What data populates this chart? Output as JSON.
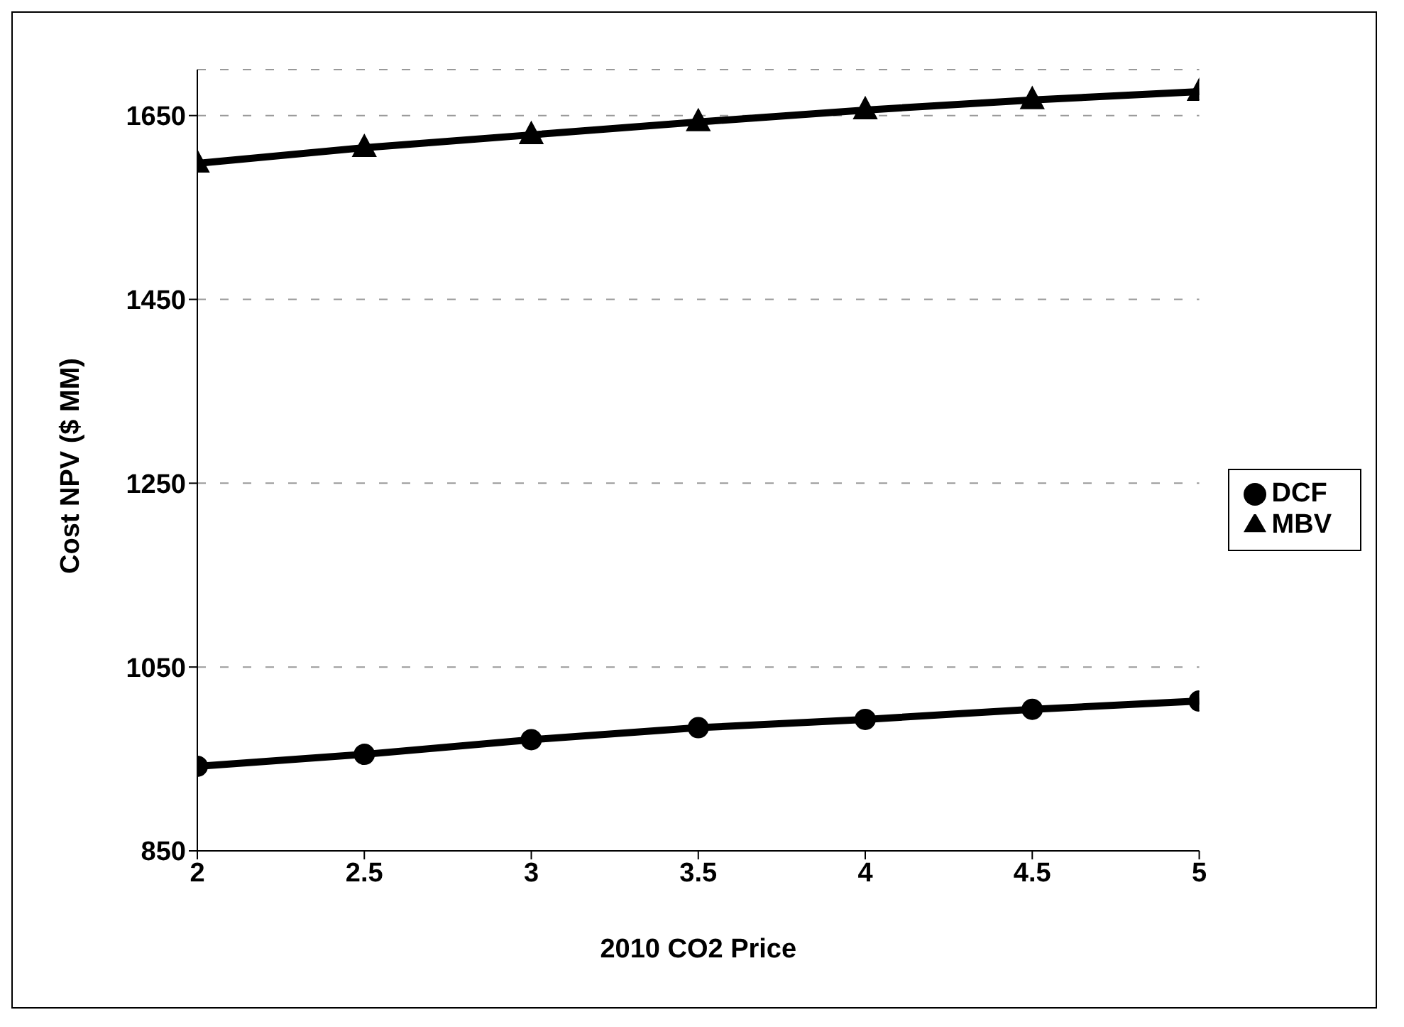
{
  "chart_data": {
    "type": "line",
    "xlabel": "2010 CO2 Price",
    "ylabel": "Cost NPV ($ MM)",
    "x": [
      2,
      2.5,
      3,
      3.5,
      4,
      4.5,
      5
    ],
    "series": [
      {
        "name": "MBV",
        "color": "#000000",
        "marker": "triangle",
        "values": [
          1598,
          1615,
          1629,
          1643,
          1656,
          1667,
          1676
        ]
      },
      {
        "name": "DCF",
        "color": "#000000",
        "marker": "circle",
        "values": [
          942,
          955,
          971,
          984,
          993,
          1004,
          1013
        ]
      }
    ],
    "xlim": [
      2,
      5
    ],
    "xticks": [
      2,
      2.5,
      3,
      3.5,
      4,
      4.5,
      5
    ],
    "ylim": [
      850,
      1700
    ],
    "yticks": [
      850,
      1050,
      1250,
      1450,
      1650
    ],
    "grid": "y",
    "legend": "right",
    "line_style": "solid"
  }
}
